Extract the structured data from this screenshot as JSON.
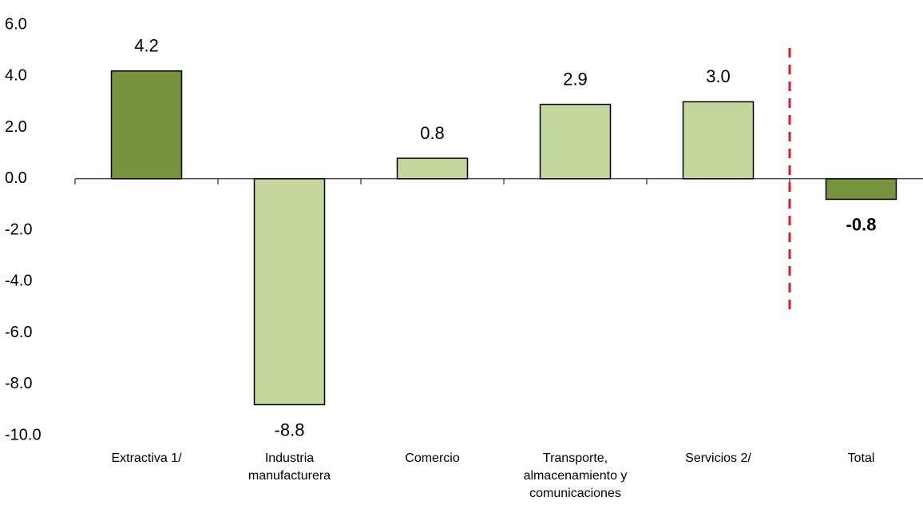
{
  "chart_data": {
    "type": "bar",
    "categories": [
      "Extractiva 1/",
      "Industria manufacturera",
      "Comercio",
      "Transporte, almacenamiento y comunicaciones",
      "Servicios 2/",
      "Total"
    ],
    "values": [
      4.2,
      -8.8,
      0.8,
      2.9,
      3.0,
      -0.8
    ],
    "value_labels": [
      "4.2",
      "-8.8",
      "0.8",
      "2.9",
      "3.0",
      "-0.8"
    ],
    "colors": [
      "#77933c",
      "#c3d69b",
      "#c3d69b",
      "#c3d69b",
      "#c3d69b",
      "#77933c"
    ],
    "ylim": [
      -10,
      6
    ],
    "yticks": [
      {
        "value": -10,
        "label": "-10.0"
      },
      {
        "value": -8,
        "label": "-8.0"
      },
      {
        "value": -6,
        "label": "-6.0"
      },
      {
        "value": -4,
        "label": "-4.0"
      },
      {
        "value": -2,
        "label": "-2.0"
      },
      {
        "value": 0,
        "label": "0.0"
      },
      {
        "value": 2,
        "label": "2.0"
      },
      {
        "value": 4,
        "label": "4.0"
      },
      {
        "value": 6,
        "label": "6.0"
      }
    ],
    "grid": false
  }
}
